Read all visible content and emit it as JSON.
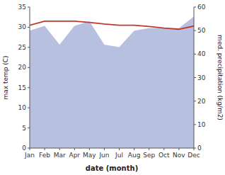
{
  "chart_data": {
    "type": "line",
    "categories": [
      "Jan",
      "Feb",
      "Mar",
      "Apr",
      "May",
      "Jun",
      "Jul",
      "Aug",
      "Sep",
      "Oct",
      "Nov",
      "Dec"
    ],
    "xlabel": "date (month)",
    "ylabel": "max temp (C)",
    "y2label": "med. precipitation (kg/m2)",
    "series": [
      {
        "type": "area",
        "axis": "y2",
        "color": "#b8c0e0",
        "values": [
          50,
          52,
          44,
          52,
          54,
          44,
          43,
          50,
          51,
          51,
          51,
          56
        ]
      },
      {
        "type": "line",
        "color": "#c0392b",
        "values": [
          30.5,
          31.5,
          31.5,
          31.5,
          31.2,
          30.8,
          30.5,
          30.5,
          30.2,
          29.8,
          29.5,
          30.3
        ]
      }
    ],
    "ylim": [
      0,
      35
    ],
    "yticks": [
      0,
      5,
      10,
      15,
      20,
      25,
      30,
      35
    ],
    "y2lim": [
      0,
      60
    ],
    "y2ticks": [
      0,
      10,
      20,
      30,
      40,
      50,
      60
    ],
    "grid": false
  }
}
